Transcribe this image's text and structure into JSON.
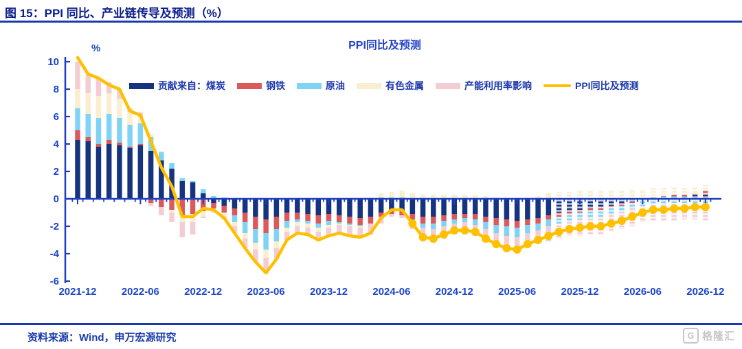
{
  "page": {
    "header_title": "图 15：PPI 同比、产业链传导及预测（%）",
    "source_note": "资料来源：Wind，申万宏源研究",
    "watermark": "格隆汇",
    "watermark_icon_letter": "G"
  },
  "chart_data": {
    "type": "bar",
    "subtype": "stacked-bar-with-line",
    "title": "PPI同比及预测",
    "y_unit_label": "%",
    "ylim": [
      -6,
      10
    ],
    "yticks": [
      10,
      8,
      6,
      4,
      2,
      0,
      -2,
      -4,
      -6
    ],
    "grid": "off",
    "legend_position": "top-inside",
    "axis_color": "#1d3fc0",
    "tick_label_color": "#1d46c8",
    "x_axis_labels": [
      "2021-12",
      "2022-06",
      "2022-12",
      "2023-06",
      "2023-12",
      "2024-06",
      "2024-12",
      "2025-06",
      "2025-12",
      "2026-06",
      "2026-12"
    ],
    "months": [
      "2021-12",
      "2022-01",
      "2022-02",
      "2022-03",
      "2022-04",
      "2022-05",
      "2022-06",
      "2022-07",
      "2022-08",
      "2022-09",
      "2022-10",
      "2022-11",
      "2022-12",
      "2023-01",
      "2023-02",
      "2023-03",
      "2023-04",
      "2023-05",
      "2023-06",
      "2023-07",
      "2023-08",
      "2023-09",
      "2023-10",
      "2023-11",
      "2023-12",
      "2024-01",
      "2024-02",
      "2024-03",
      "2024-04",
      "2024-05",
      "2024-06",
      "2024-07",
      "2024-08",
      "2024-09",
      "2024-10",
      "2024-11",
      "2024-12",
      "2025-01",
      "2025-02",
      "2025-03",
      "2025-04",
      "2025-05",
      "2025-06",
      "2025-07",
      "2025-08",
      "2025-09",
      "2025-10",
      "2025-11",
      "2025-12",
      "2026-01",
      "2026-02",
      "2026-03",
      "2026-04",
      "2026-05",
      "2026-06",
      "2026-07",
      "2026-08",
      "2026-09",
      "2026-10",
      "2026-11",
      "2026-12"
    ],
    "series": [
      {
        "name": "煤炭",
        "color": "#15337f",
        "values": [
          4.3,
          4.2,
          3.8,
          4.0,
          3.9,
          3.7,
          3.9,
          3.5,
          2.8,
          2.2,
          1.3,
          1.2,
          0.4,
          -0.3,
          -0.5,
          -0.7,
          -1.0,
          -1.3,
          -1.5,
          -1.3,
          -1.0,
          -1.0,
          -1.1,
          -1.2,
          -1.1,
          -1.2,
          -1.3,
          -1.4,
          -1.3,
          -1.0,
          -0.9,
          -0.9,
          -1.1,
          -1.3,
          -1.3,
          -1.2,
          -1.1,
          -1.1,
          -1.1,
          -1.3,
          -1.4,
          -1.5,
          -1.6,
          -1.5,
          -1.4,
          -1.2,
          -1.0,
          -0.9,
          -0.8,
          -0.7,
          -0.6,
          -0.5,
          -0.4,
          -0.2,
          0.0,
          0.1,
          0.2,
          0.2,
          0.2,
          0.3,
          0.3
        ]
      },
      {
        "name": "钢铁",
        "color": "#da5a5c",
        "values": [
          0.7,
          0.3,
          0.2,
          0.3,
          0.2,
          0.1,
          0.1,
          -0.3,
          -0.6,
          -0.8,
          -1.2,
          -1.1,
          -0.9,
          -0.4,
          -0.5,
          -0.5,
          -0.7,
          -0.9,
          -1.0,
          -0.9,
          -0.6,
          -0.5,
          -0.5,
          -0.6,
          -0.5,
          -0.5,
          -0.5,
          -0.5,
          -0.5,
          -0.3,
          -0.2,
          -0.3,
          -0.4,
          -0.5,
          -0.5,
          -0.4,
          -0.4,
          -0.3,
          -0.4,
          -0.4,
          -0.5,
          -0.5,
          -0.5,
          -0.4,
          -0.4,
          -0.3,
          -0.3,
          -0.2,
          -0.2,
          -0.2,
          -0.2,
          -0.1,
          -0.1,
          -0.1,
          -0.1,
          0.0,
          0.0,
          0.1,
          0.1,
          0.1,
          0.3
        ]
      },
      {
        "name": "原油",
        "color": "#7fd3f4",
        "values": [
          1.6,
          1.7,
          1.9,
          1.9,
          1.8,
          1.6,
          1.5,
          1.0,
          0.6,
          0.4,
          0.2,
          0.1,
          0.3,
          0.2,
          0.1,
          -0.5,
          -0.8,
          -1.0,
          -1.2,
          -0.9,
          -0.5,
          -0.2,
          -0.2,
          -0.3,
          -0.3,
          -0.1,
          -0.1,
          -0.1,
          0.0,
          0.1,
          0.1,
          0.1,
          -0.1,
          -0.3,
          -0.4,
          -0.4,
          -0.3,
          -0.3,
          -0.4,
          -0.5,
          -0.6,
          -0.7,
          -0.7,
          -0.6,
          -0.5,
          -0.5,
          -0.5,
          -0.5,
          -0.5,
          -0.5,
          -0.5,
          -0.5,
          -0.4,
          -0.4,
          -0.4,
          -0.4,
          -0.4,
          -0.3,
          -0.3,
          -0.3,
          -0.3
        ]
      },
      {
        "name": "有色金属",
        "color": "#faeed0",
        "values": [
          1.4,
          1.5,
          1.6,
          1.5,
          1.4,
          0.9,
          0.5,
          0.2,
          0.1,
          -0.2,
          -0.5,
          -0.6,
          -0.4,
          -0.2,
          -0.3,
          -0.3,
          -0.4,
          -0.5,
          -0.6,
          -0.5,
          -0.3,
          -0.3,
          -0.3,
          -0.3,
          -0.2,
          -0.1,
          -0.1,
          -0.1,
          0.1,
          0.3,
          0.4,
          0.5,
          0.4,
          0.3,
          0.3,
          0.3,
          0.3,
          0.3,
          0.3,
          0.2,
          0.1,
          0.1,
          0.1,
          0.1,
          0.2,
          0.4,
          0.5,
          0.5,
          0.6,
          0.6,
          0.6,
          0.6,
          0.6,
          0.7,
          0.7,
          0.7,
          0.6,
          0.6,
          0.5,
          0.5,
          0.4
        ]
      },
      {
        "name": "产能利用率影响",
        "color": "#f4cdd3",
        "values": [
          2.0,
          1.4,
          1.3,
          0.8,
          0.7,
          0.3,
          0.3,
          -0.2,
          -0.6,
          -0.7,
          -1.1,
          -0.9,
          -0.1,
          -0.1,
          -0.2,
          -0.5,
          -0.7,
          -0.9,
          -1.1,
          -0.8,
          -0.6,
          -0.5,
          -0.5,
          -0.6,
          -0.6,
          -0.6,
          -0.7,
          -0.7,
          -0.8,
          -0.5,
          -0.2,
          -0.2,
          -0.6,
          -1.0,
          -1.0,
          -0.9,
          -0.8,
          -0.9,
          -0.8,
          -0.9,
          -0.9,
          -1.0,
          -1.0,
          -0.9,
          -0.9,
          -1.1,
          -1.1,
          -1.1,
          -1.2,
          -1.2,
          -1.3,
          -1.3,
          -1.3,
          -1.3,
          -1.2,
          -1.2,
          -1.2,
          -1.3,
          -1.2,
          -1.2,
          -1.3
        ]
      }
    ],
    "line": {
      "name": "PPI同比及预测",
      "color": "#ffc000",
      "values": [
        10.3,
        9.1,
        8.8,
        8.3,
        8.0,
        6.4,
        6.1,
        4.2,
        2.3,
        0.9,
        -1.3,
        -1.3,
        -0.7,
        -0.8,
        -1.4,
        -2.5,
        -3.6,
        -4.6,
        -5.4,
        -4.4,
        -3.0,
        -2.5,
        -2.6,
        -3.0,
        -2.7,
        -2.5,
        -2.7,
        -2.8,
        -2.5,
        -1.4,
        -0.8,
        -0.8,
        -1.8,
        -2.8,
        -2.9,
        -2.6,
        -2.3,
        -2.3,
        -2.4,
        -2.9,
        -3.3,
        -3.6,
        -3.7,
        -3.3,
        -3.0,
        -2.7,
        -2.4,
        -2.2,
        -2.1,
        -2.0,
        -2.0,
        -1.8,
        -1.6,
        -1.3,
        -1.0,
        -0.8,
        -0.8,
        -0.7,
        -0.7,
        -0.6,
        -0.6
      ]
    },
    "forecast_marker_from": "2024-08",
    "hatched_bars_from": "2025-10",
    "legend": [
      {
        "label": "贡献来自：煤炭",
        "color": "#15337f",
        "type": "bar"
      },
      {
        "label": "钢铁",
        "color": "#da5a5c",
        "type": "bar"
      },
      {
        "label": "原油",
        "color": "#7fd3f4",
        "type": "bar"
      },
      {
        "label": "有色金属",
        "color": "#faeed0",
        "type": "bar"
      },
      {
        "label": "产能利用率影响",
        "color": "#f4cdd3",
        "type": "bar"
      },
      {
        "label": "PPI同比及预测",
        "color": "#ffc000",
        "type": "line"
      }
    ]
  }
}
